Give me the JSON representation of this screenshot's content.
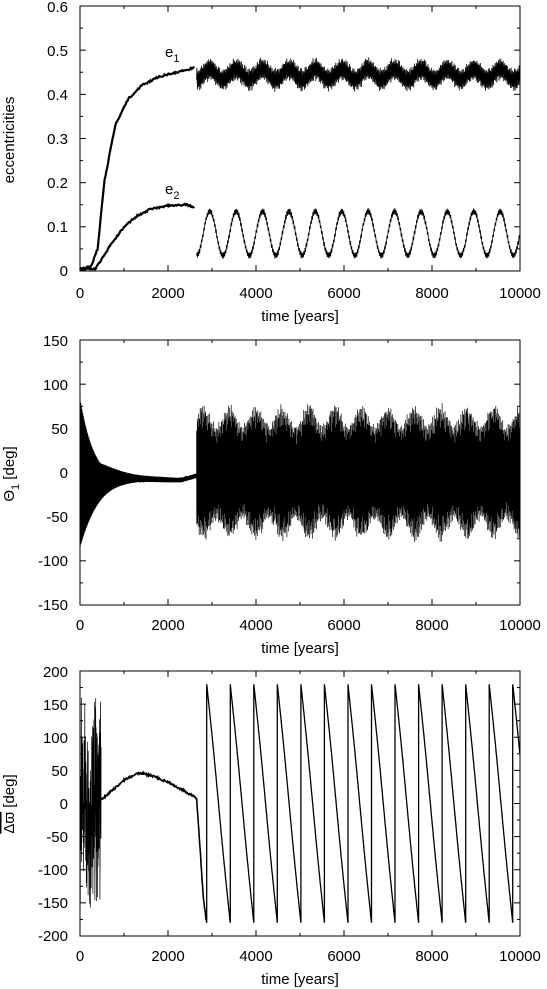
{
  "chart_data": [
    {
      "type": "line",
      "ylabel": "eccentricities",
      "xlabel": "time [years]",
      "xlim": [
        0,
        10000
      ],
      "ylim": [
        0,
        0.6
      ],
      "xticks": [
        "0",
        "2000",
        "4000",
        "6000",
        "8000",
        "10000"
      ],
      "yticks": [
        "0",
        "0.1",
        "0.2",
        "0.3",
        "0.4",
        "0.5",
        "0.6"
      ],
      "grid": false,
      "series": [
        {
          "name": "e1",
          "label_base": "e",
          "label_sub": "1",
          "color": "#000000",
          "growth": {
            "x": [
              0,
              250,
              400,
              550,
              800,
              1100,
              1400,
              1800,
              2200,
              2600
            ],
            "y": [
              0.005,
              0.01,
              0.05,
              0.2,
              0.33,
              0.39,
              0.42,
              0.44,
              0.45,
              0.46
            ]
          },
          "oscillation": {
            "start": 2650,
            "end": 10000,
            "period": 600,
            "mean": 0.445,
            "slow_amplitude": 0.012,
            "fast_amplitude": 0.028
          }
        },
        {
          "name": "e2",
          "label_base": "e",
          "label_sub": "2",
          "color": "#000000",
          "growth": {
            "x": [
              0,
              350,
              450,
              700,
              1000,
              1300,
              1600,
              2000,
              2400,
              2600
            ],
            "y": [
              0.004,
              0.005,
              0.02,
              0.06,
              0.1,
              0.125,
              0.14,
              0.148,
              0.15,
              0.145
            ]
          },
          "oscillation": {
            "start": 2650,
            "end": 10000,
            "period": 600,
            "mean": 0.085,
            "slow_amplitude": 0.05,
            "fast_amplitude": 0.008
          }
        }
      ]
    },
    {
      "type": "line",
      "ylabel": "Θ",
      "ylabel_sub": "1",
      "ylabel_unit": " [deg]",
      "xlabel": "time [years]",
      "xlim": [
        0,
        10000
      ],
      "ylim": [
        -150,
        150
      ],
      "xticks": [
        "0",
        "2000",
        "4000",
        "6000",
        "8000",
        "10000"
      ],
      "yticks": [
        "-150",
        "-100",
        "-50",
        "0",
        "50",
        "100",
        "150"
      ],
      "grid": false,
      "series": [
        {
          "name": "Θ1",
          "color": "#000000",
          "phase1": {
            "start": 0,
            "end": 2650,
            "initial_amplitude": 95,
            "decay_years": 350,
            "slow_offset_min": -8,
            "slow_offset_at_years": 1500
          },
          "phase2": {
            "start": 2650,
            "end": 10000,
            "envelope_mean": 68,
            "envelope_amplitude": 12,
            "envelope_period": 600
          }
        }
      ]
    },
    {
      "type": "line",
      "ylabel": "Δϖ",
      "ylabel_unit": " [deg]",
      "xlabel": "time [years]",
      "xlim": [
        0,
        10000
      ],
      "ylim": [
        -200,
        200
      ],
      "xticks": [
        "0",
        "2000",
        "4000",
        "6000",
        "8000",
        "10000"
      ],
      "yticks": [
        "-200",
        "-150",
        "-100",
        "-50",
        "0",
        "50",
        "100",
        "150",
        "200"
      ],
      "grid": false,
      "series": [
        {
          "name": "Δϖ",
          "color": "#000000",
          "chaotic": {
            "start": 0,
            "end": 480,
            "amplitude": 175
          },
          "smooth": {
            "x": [
              480,
              700,
              1000,
              1300,
              1600,
              2000,
              2400,
              2650
            ],
            "y": [
              5,
              18,
              35,
              46,
              43,
              32,
              18,
              8
            ]
          },
          "transition": {
            "x": [
              2650,
              2700,
              2750,
              2800,
              2870
            ],
            "y": [
              8,
              -40,
              -90,
              -140,
              -178
            ]
          },
          "wraps": {
            "first_wrap": 2880,
            "period": 535,
            "end": 10000,
            "max": 180,
            "min": -180
          }
        }
      ]
    }
  ]
}
